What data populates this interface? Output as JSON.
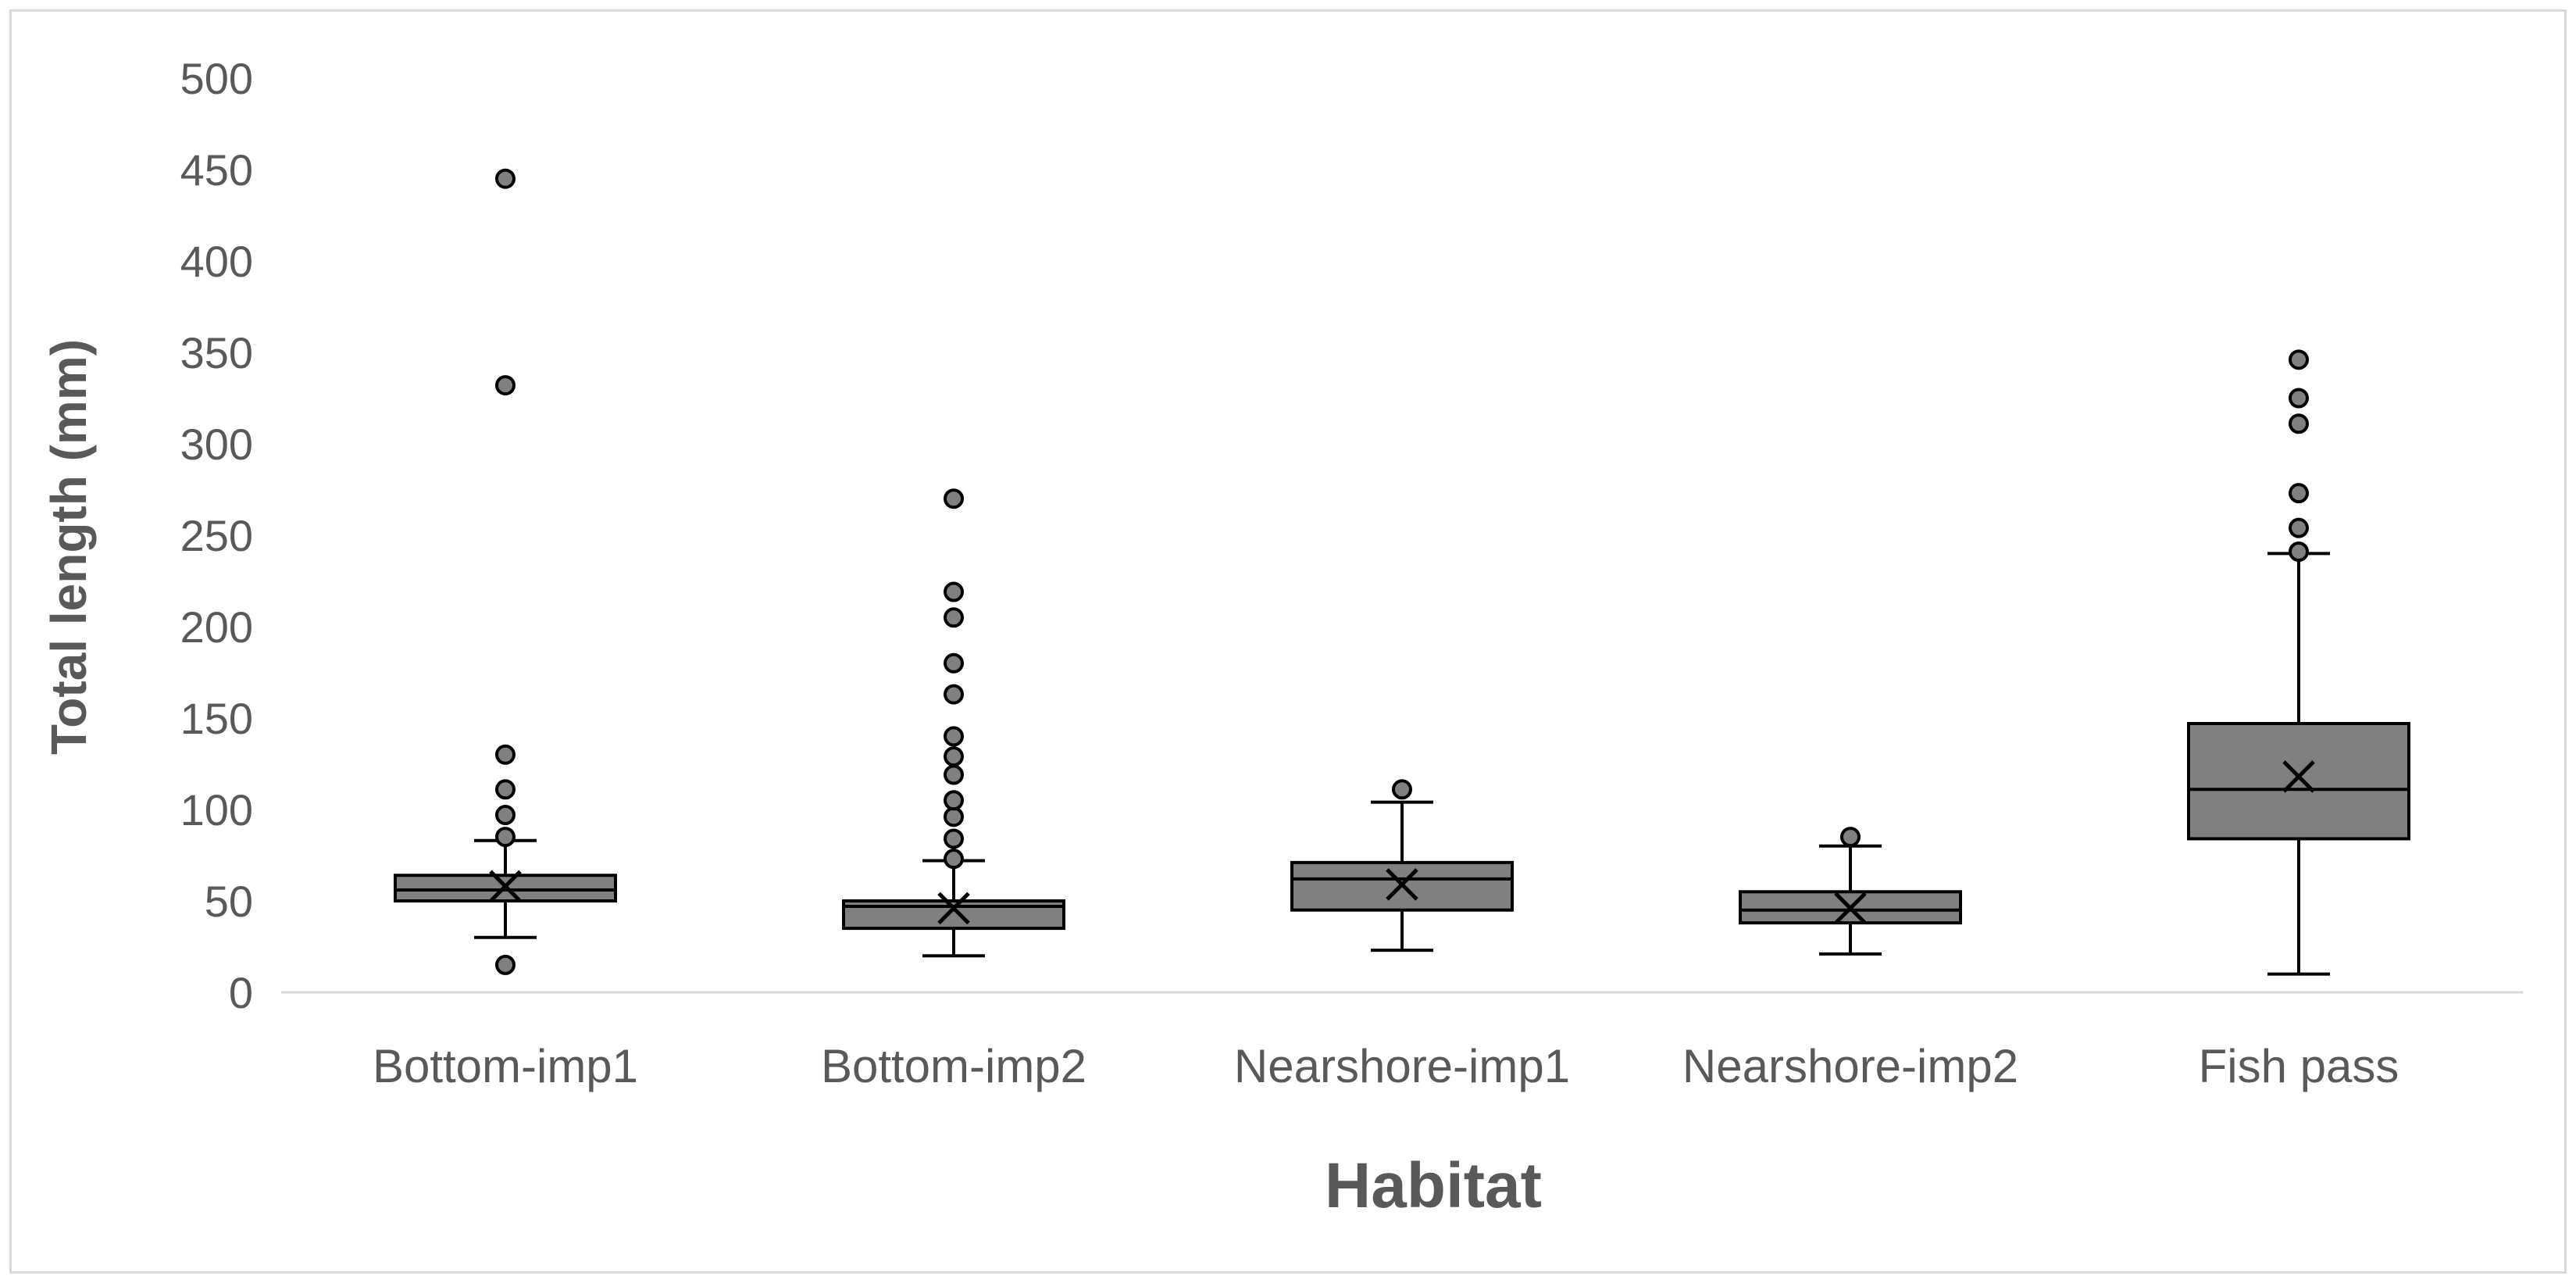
{
  "chart_data": {
    "type": "box",
    "title": "",
    "xlabel": "Habitat",
    "ylabel": "Total length (mm)",
    "ylim": [
      0,
      500
    ],
    "y_ticks": [
      0,
      50,
      100,
      150,
      200,
      250,
      300,
      350,
      400,
      450,
      500
    ],
    "y_tick_labels": [
      "0",
      "50",
      "100",
      "150",
      "200",
      "250",
      "300",
      "350",
      "400",
      "450",
      "500"
    ],
    "grid": false,
    "legend": "none",
    "colors": {
      "box_fill": "#808080",
      "box_stroke": "#000000",
      "outlier_fill": "#808080",
      "axis": "#d9d9d9",
      "text": "#595959"
    },
    "categories": [
      "Bottom-imp1",
      "Bottom-imp2",
      "Nearshore-imp1",
      "Nearshore-imp2",
      "Fish pass"
    ],
    "boxes": [
      {
        "category": "Bottom-imp1",
        "whisker_low": 30,
        "q1": 50,
        "median": 56,
        "q3": 64,
        "whisker_high": 83,
        "mean": 58,
        "outliers": [
          15,
          85,
          97,
          111,
          130,
          332,
          445
        ]
      },
      {
        "category": "Bottom-imp2",
        "whisker_low": 20,
        "q1": 35,
        "median": 47,
        "q3": 50,
        "whisker_high": 72,
        "mean": 46,
        "outliers": [
          73,
          84,
          96,
          105,
          119,
          129,
          140,
          163,
          180,
          205,
          219,
          270
        ]
      },
      {
        "category": "Nearshore-imp1",
        "whisker_low": 23,
        "q1": 45,
        "median": 62,
        "q3": 71,
        "whisker_high": 104,
        "mean": 59,
        "outliers": [
          111
        ]
      },
      {
        "category": "Nearshore-imp2",
        "whisker_low": 21,
        "q1": 38,
        "median": 45,
        "q3": 55,
        "whisker_high": 80,
        "mean": 46,
        "outliers": [
          85
        ]
      },
      {
        "category": "Fish pass",
        "whisker_low": 10,
        "q1": 84,
        "median": 111,
        "q3": 147,
        "whisker_high": 240,
        "mean": 118,
        "outliers": [
          241,
          254,
          273,
          311,
          325,
          346
        ]
      }
    ]
  }
}
